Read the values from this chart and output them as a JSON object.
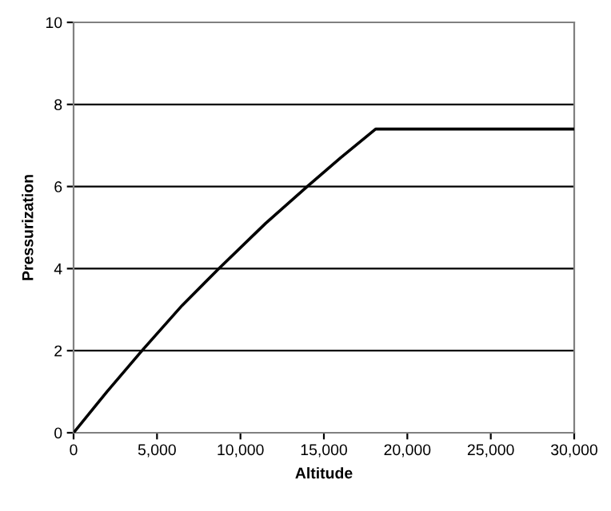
{
  "chart_data": {
    "type": "line",
    "xlabel": "Altitude",
    "ylabel": "Pressurization",
    "series": [
      {
        "color": "#000000",
        "x": [
          0,
          2000,
          4100,
          6500,
          8700,
          11500,
          14000,
          16000,
          18100,
          30000
        ],
        "values": [
          0,
          1.0,
          2,
          3.1,
          4,
          5.1,
          6,
          6.7,
          7.4,
          7.4
        ]
      }
    ],
    "xlim": [
      0,
      30000
    ],
    "ylim": [
      0,
      10
    ],
    "xticks": [
      {
        "value": 0,
        "label": "0"
      },
      {
        "value": 5000,
        "label": "5,000"
      },
      {
        "value": 10000,
        "label": "10,000"
      },
      {
        "value": 15000,
        "label": "15,000"
      },
      {
        "value": 20000,
        "label": "20,000"
      },
      {
        "value": 25000,
        "label": "25,000"
      },
      {
        "value": 30000,
        "label": "30,000"
      }
    ],
    "yticks": [
      0,
      2,
      4,
      6,
      8,
      10
    ],
    "grid": "y",
    "marker": "none",
    "line_style": "solid",
    "legend": false
  }
}
